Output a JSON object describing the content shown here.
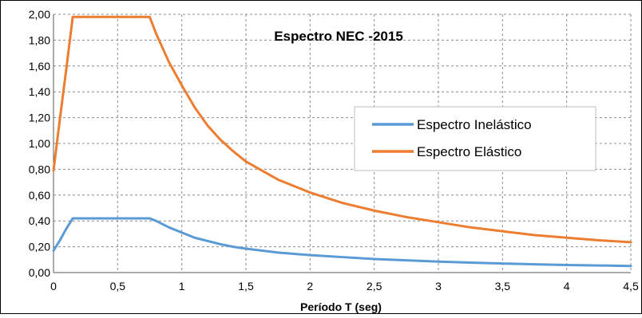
{
  "chart_data": {
    "type": "line",
    "title": "Espectro NEC -2015",
    "xlabel": "Período T (seg)",
    "ylabel": "",
    "xlim": [
      0,
      4.5
    ],
    "ylim": [
      0,
      2.0
    ],
    "x_ticks": [
      0,
      0.5,
      1,
      1.5,
      2,
      2.5,
      3,
      3.5,
      4,
      4.5
    ],
    "x_tick_labels": [
      "0",
      "0,5",
      "1",
      "1,5",
      "2",
      "2,5",
      "3",
      "3,5",
      "4",
      "4,5"
    ],
    "y_ticks": [
      0,
      0.2,
      0.4,
      0.6,
      0.8,
      1.0,
      1.2,
      1.4,
      1.6,
      1.8,
      2.0
    ],
    "y_tick_labels": [
      "0,00",
      "0,20",
      "0,40",
      "0,60",
      "0,80",
      "1,00",
      "1,20",
      "1,40",
      "1,60",
      "1,80",
      "2,00"
    ],
    "grid": true,
    "legend_position": "center-right",
    "series": [
      {
        "name": "Espectro Inelástico",
        "color": "#5b9bd5",
        "x": [
          0,
          0.05,
          0.1,
          0.15,
          0.2,
          0.3,
          0.4,
          0.5,
          0.6,
          0.7,
          0.75,
          0.8,
          0.9,
          1.0,
          1.1,
          1.2,
          1.3,
          1.4,
          1.5,
          1.75,
          2.0,
          2.25,
          2.5,
          2.75,
          3.0,
          3.25,
          3.5,
          3.75,
          4.0,
          4.25,
          4.5
        ],
        "y": [
          0.17,
          0.25,
          0.34,
          0.42,
          0.42,
          0.42,
          0.42,
          0.42,
          0.42,
          0.42,
          0.42,
          0.4,
          0.35,
          0.31,
          0.27,
          0.245,
          0.22,
          0.2,
          0.185,
          0.155,
          0.135,
          0.12,
          0.105,
          0.095,
          0.085,
          0.077,
          0.07,
          0.064,
          0.059,
          0.055,
          0.051
        ]
      },
      {
        "name": "Espectro Elástico",
        "color": "#ed7d31",
        "x": [
          0,
          0.05,
          0.1,
          0.15,
          0.2,
          0.3,
          0.4,
          0.5,
          0.6,
          0.7,
          0.75,
          0.8,
          0.9,
          1.0,
          1.1,
          1.2,
          1.3,
          1.4,
          1.5,
          1.75,
          2.0,
          2.25,
          2.5,
          2.75,
          3.0,
          3.25,
          3.5,
          3.75,
          4.0,
          4.25,
          4.5
        ],
        "y": [
          0.79,
          1.19,
          1.58,
          1.98,
          1.98,
          1.98,
          1.98,
          1.98,
          1.98,
          1.98,
          1.98,
          1.85,
          1.63,
          1.45,
          1.28,
          1.14,
          1.03,
          0.94,
          0.86,
          0.72,
          0.62,
          0.54,
          0.48,
          0.43,
          0.39,
          0.35,
          0.32,
          0.29,
          0.27,
          0.25,
          0.235
        ]
      }
    ]
  }
}
